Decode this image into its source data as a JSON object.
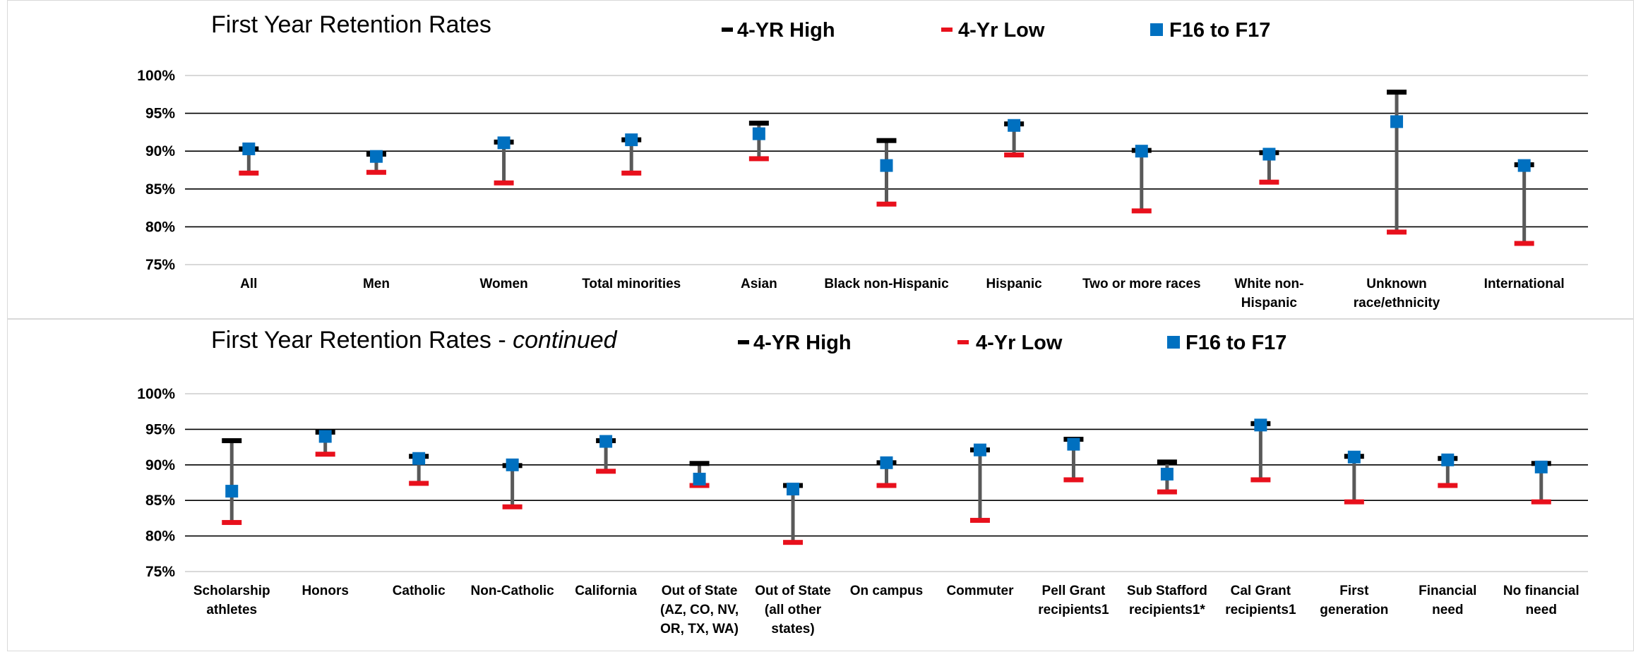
{
  "colors": {
    "high": "#000000",
    "low": "#e8101c",
    "value": "#0070c0",
    "stem": "#595959",
    "grid": "#000000"
  },
  "legend": {
    "high": "4-YR High",
    "low": "4-Yr Low",
    "value": "F16 to F17"
  },
  "chart_data": [
    {
      "type": "errorbar",
      "title": "First Year Retention Rates",
      "subtitle": "",
      "ylim": [
        75,
        100
      ],
      "yticks": [
        75,
        80,
        85,
        90,
        95,
        100
      ],
      "ytick_labels": [
        "75%",
        "80%",
        "85%",
        "90%",
        "95%",
        "100%"
      ],
      "grid": true,
      "categories": [
        [
          "All"
        ],
        [
          "Men"
        ],
        [
          "Women"
        ],
        [
          "Total minorities"
        ],
        [
          "Asian"
        ],
        [
          "Black non-Hispanic"
        ],
        [
          "Hispanic"
        ],
        [
          "Two or more races"
        ],
        [
          "White non-",
          "Hispanic"
        ],
        [
          "Unknown",
          "race/ethnicity"
        ],
        [
          "International"
        ]
      ],
      "series": [
        {
          "name": "4-YR High",
          "values": [
            90.3,
            89.6,
            91.2,
            91.5,
            93.7,
            91.4,
            93.6,
            90.1,
            89.8,
            97.8,
            88.2
          ]
        },
        {
          "name": "4-Yr Low",
          "values": [
            87.1,
            87.2,
            85.8,
            87.1,
            89.0,
            83.0,
            89.5,
            82.1,
            85.9,
            79.3,
            77.8
          ]
        },
        {
          "name": "F16 to F17",
          "values": [
            90.3,
            89.3,
            91.1,
            91.5,
            92.3,
            88.1,
            93.4,
            90.0,
            89.6,
            93.9,
            88.1
          ]
        }
      ]
    },
    {
      "type": "errorbar",
      "title": "First Year Retention Rates - ",
      "subtitle": "continued",
      "ylim": [
        75,
        100
      ],
      "yticks": [
        75,
        80,
        85,
        90,
        95,
        100
      ],
      "ytick_labels": [
        "75%",
        "80%",
        "85%",
        "90%",
        "95%",
        "100%"
      ],
      "grid": true,
      "categories": [
        [
          "Scholarship",
          "athletes"
        ],
        [
          "Honors"
        ],
        [
          "Catholic"
        ],
        [
          "Non-Catholic"
        ],
        [
          "California"
        ],
        [
          "Out of State",
          "(AZ, CO, NV,",
          "OR, TX, WA)"
        ],
        [
          "Out of State",
          "(all other",
          "states)"
        ],
        [
          "On campus"
        ],
        [
          "Commuter"
        ],
        [
          "Pell Grant",
          "recipients1"
        ],
        [
          "Sub Stafford",
          "recipients1*"
        ],
        [
          "Cal Grant",
          "recipients1"
        ],
        [
          "First",
          "generation"
        ],
        [
          "Financial",
          "need"
        ],
        [
          "No financial",
          "need"
        ]
      ],
      "series": [
        {
          "name": "4-YR High",
          "values": [
            93.4,
            94.6,
            91.2,
            89.9,
            93.4,
            90.2,
            87.1,
            90.3,
            92.1,
            93.6,
            90.4,
            95.8,
            91.2,
            90.9,
            90.2
          ]
        },
        {
          "name": "4-Yr Low",
          "values": [
            81.9,
            91.5,
            87.4,
            84.1,
            89.1,
            87.1,
            79.1,
            87.1,
            82.2,
            87.9,
            86.2,
            87.9,
            84.8,
            87.1,
            84.8
          ]
        },
        {
          "name": "F16 to F17",
          "values": [
            86.3,
            94.0,
            90.9,
            90.0,
            93.3,
            88.0,
            86.6,
            90.3,
            92.1,
            92.9,
            88.7,
            95.6,
            91.1,
            90.7,
            89.7
          ]
        }
      ]
    }
  ]
}
